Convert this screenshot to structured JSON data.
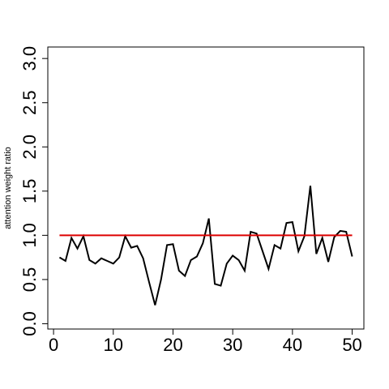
{
  "chart_data": {
    "type": "line",
    "y_label": "attention weight ratio",
    "series": [
      {
        "color": "#000000",
        "x": [
          1,
          2,
          3,
          4,
          5,
          6,
          7,
          8,
          9,
          10,
          11,
          12,
          13,
          14,
          15,
          16,
          17,
          18,
          19,
          20,
          21,
          22,
          23,
          24,
          25,
          26,
          27,
          28,
          29,
          30,
          31,
          32,
          33,
          34,
          35,
          36,
          37,
          38,
          39,
          40,
          41,
          42,
          43,
          44,
          45,
          46,
          47,
          48,
          49,
          50
        ],
        "values": [
          0.75,
          0.71,
          0.97,
          0.85,
          0.99,
          0.72,
          0.68,
          0.74,
          0.71,
          0.68,
          0.75,
          0.99,
          0.86,
          0.88,
          0.74,
          0.47,
          0.21,
          0.5,
          0.89,
          0.9,
          0.6,
          0.54,
          0.72,
          0.76,
          0.91,
          1.19,
          0.45,
          0.43,
          0.68,
          0.77,
          0.72,
          0.6,
          1.04,
          1.02,
          0.82,
          0.62,
          0.89,
          0.85,
          1.14,
          1.15,
          0.82,
          0.99,
          1.56,
          0.79,
          0.97,
          0.7,
          0.98,
          1.05,
          1.04,
          0.76
        ]
      },
      {
        "color": "#dd0000",
        "x": [
          1,
          50
        ],
        "values": [
          1,
          1
        ]
      }
    ],
    "xlim": [
      -0.96,
      51.96
    ],
    "ylim": [
      -0.06,
      3.13
    ],
    "xticks": [
      0,
      10,
      20,
      30,
      40,
      50
    ],
    "yticks": [
      {
        "value": 0,
        "label": "0.0"
      },
      0.5,
      {
        "value": 1,
        "label": "1.0"
      },
      1.5,
      {
        "value": 2,
        "label": "2.0"
      },
      2.5,
      {
        "value": 3,
        "label": "3.0"
      }
    ],
    "grid": false
  }
}
